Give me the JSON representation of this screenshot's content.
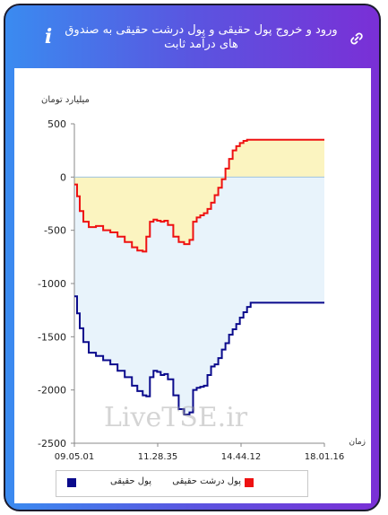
{
  "header": {
    "title": "ورود و خروج پول حقیقی و پول درشت حقیقی به صندوق های درآمد ثابت",
    "info_icon": "i"
  },
  "watermark": "LiveTSE.ir",
  "colors": {
    "real_money": "#0a0a8c",
    "large_real_money": "#ee1111",
    "fill_positive": "#fbf4c0",
    "fill_negative": "#e8f3fb"
  },
  "chart_data": {
    "type": "line",
    "ylabel": "میلیارد تومان",
    "xlabel": "زمان",
    "ylim": [
      -2500,
      500
    ],
    "yticks": [
      "500",
      "0",
      "-500",
      "-1000",
      "-1500",
      "-2000",
      "-2500"
    ],
    "xticks": [
      "09.05.01",
      "11.28.35",
      "14.44.12",
      "18.01.16"
    ],
    "x": [
      0,
      3,
      6,
      10,
      16,
      24,
      32,
      40,
      48,
      56,
      64,
      70,
      76,
      80,
      84,
      88,
      92,
      96,
      100,
      104,
      110,
      116,
      122,
      128,
      132,
      136,
      140,
      144,
      148,
      152,
      156,
      160,
      164,
      168,
      172,
      176,
      180,
      184,
      188,
      192,
      196,
      200,
      204,
      208,
      212,
      216,
      220,
      226,
      240,
      260,
      278
    ],
    "series": [
      {
        "name": "پول حقیقی",
        "values": [
          -1120,
          -1280,
          -1420,
          -1550,
          -1650,
          -1680,
          -1720,
          -1760,
          -1820,
          -1880,
          -1960,
          -2010,
          -2050,
          -2060,
          -1880,
          -1820,
          -1830,
          -1860,
          -1850,
          -1900,
          -2050,
          -2180,
          -2230,
          -2210,
          -2000,
          -1980,
          -1970,
          -1960,
          -1860,
          -1780,
          -1760,
          -1700,
          -1620,
          -1560,
          -1480,
          -1430,
          -1380,
          -1320,
          -1270,
          -1220,
          -1180,
          -1180,
          -1180,
          -1180,
          -1180,
          -1180,
          -1180,
          -1180,
          -1180,
          -1180,
          -1180
        ]
      },
      {
        "name": "پول درشت حقیقی",
        "values": [
          -70,
          -180,
          -320,
          -420,
          -470,
          -460,
          -500,
          -520,
          -560,
          -610,
          -660,
          -690,
          -700,
          -560,
          -420,
          -400,
          -410,
          -420,
          -410,
          -450,
          -560,
          -610,
          -630,
          -590,
          -420,
          -380,
          -360,
          -340,
          -300,
          -240,
          -170,
          -100,
          -20,
          80,
          170,
          250,
          290,
          320,
          340,
          350,
          350,
          350,
          350,
          350,
          350,
          350,
          350,
          350,
          350,
          350,
          350
        ]
      }
    ],
    "grid": false,
    "legend_position": "bottom"
  }
}
